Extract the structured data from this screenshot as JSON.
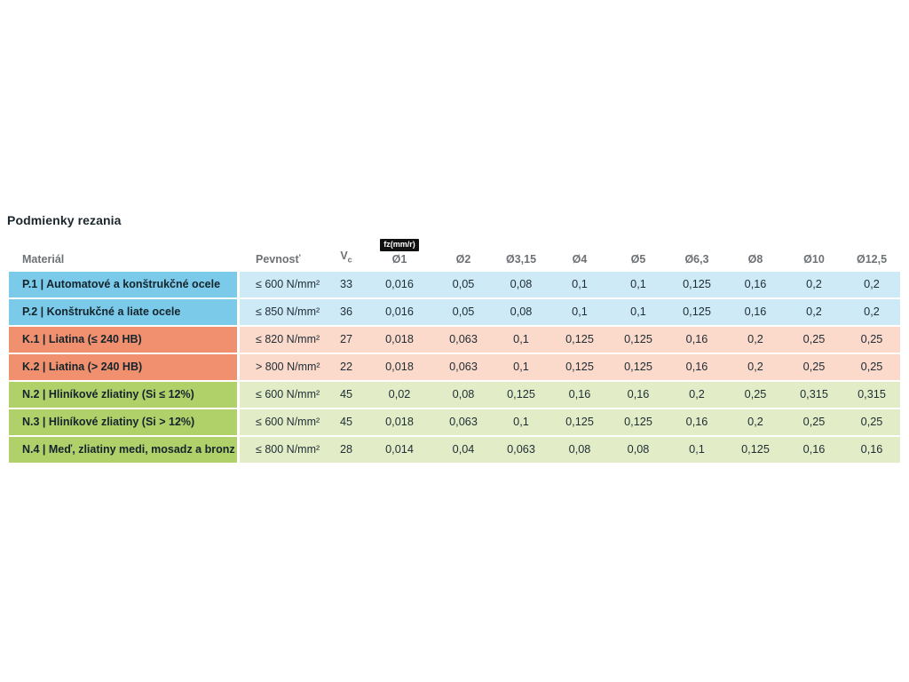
{
  "page_title": "Podmienky rezania",
  "colors": {
    "P": {
      "strong": "#7bcae9",
      "light": "#cfeaf7"
    },
    "K": {
      "strong": "#f1906f",
      "light": "#fbd9cb"
    },
    "N": {
      "strong": "#b0d06a",
      "light": "#e2edc8"
    },
    "badge_bg": "#111111",
    "badge_text": "#ffffff",
    "header_text": "#6e7275",
    "title_text": "#1b262c",
    "cell_text": "#1e2c34"
  },
  "header_vc": {
    "base": "V",
    "sub": "c"
  },
  "chart_data": {
    "type": "table",
    "title": "Podmienky rezania",
    "fz_badge": "fz(mm/r)",
    "columns": [
      "Materiál",
      "Pevnosť",
      "Vc",
      "Ø1",
      "Ø2",
      "Ø3,15",
      "Ø4",
      "Ø5",
      "Ø6,3",
      "Ø8",
      "Ø10",
      "Ø12,5"
    ],
    "rows": [
      {
        "group": "P",
        "material": "P.1 | Automatové a konštrukčné ocele",
        "pevnost": "≤ 600 N/mm²",
        "vc": "33",
        "fz": [
          "0,016",
          "0,05",
          "0,08",
          "0,1",
          "0,1",
          "0,125",
          "0,16",
          "0,2",
          "0,2"
        ]
      },
      {
        "group": "P",
        "material": "P.2 | Konštrukčné a liate ocele",
        "pevnost": "≤ 850 N/mm²",
        "vc": "36",
        "fz": [
          "0,016",
          "0,05",
          "0,08",
          "0,1",
          "0,1",
          "0,125",
          "0,16",
          "0,2",
          "0,2"
        ]
      },
      {
        "group": "K",
        "material": "K.1 | Liatina (≤ 240 HB)",
        "pevnost": "≤ 820 N/mm²",
        "vc": "27",
        "fz": [
          "0,018",
          "0,063",
          "0,1",
          "0,125",
          "0,125",
          "0,16",
          "0,2",
          "0,25",
          "0,25"
        ]
      },
      {
        "group": "K",
        "material": "K.2 | Liatina (> 240 HB)",
        "pevnost": "> 800 N/mm²",
        "vc": "22",
        "fz": [
          "0,018",
          "0,063",
          "0,1",
          "0,125",
          "0,125",
          "0,16",
          "0,2",
          "0,25",
          "0,25"
        ]
      },
      {
        "group": "N",
        "material": "N.2 | Hliníkové zliatiny (Si ≤ 12%)",
        "pevnost": "≤ 600 N/mm²",
        "vc": "45",
        "fz": [
          "0,02",
          "0,08",
          "0,125",
          "0,16",
          "0,16",
          "0,2",
          "0,25",
          "0,315",
          "0,315"
        ]
      },
      {
        "group": "N",
        "material": "N.3 | Hliníkové zliatiny (Si > 12%)",
        "pevnost": "≤ 600 N/mm²",
        "vc": "45",
        "fz": [
          "0,018",
          "0,063",
          "0,1",
          "0,125",
          "0,125",
          "0,16",
          "0,2",
          "0,25",
          "0,25"
        ]
      },
      {
        "group": "N",
        "material": "N.4 | Meď, zliatiny medi, mosadz a bronz",
        "pevnost": "≤ 800 N/mm²",
        "vc": "28",
        "fz": [
          "0,014",
          "0,04",
          "0,063",
          "0,08",
          "0,08",
          "0,1",
          "0,125",
          "0,16",
          "0,16"
        ]
      }
    ]
  }
}
